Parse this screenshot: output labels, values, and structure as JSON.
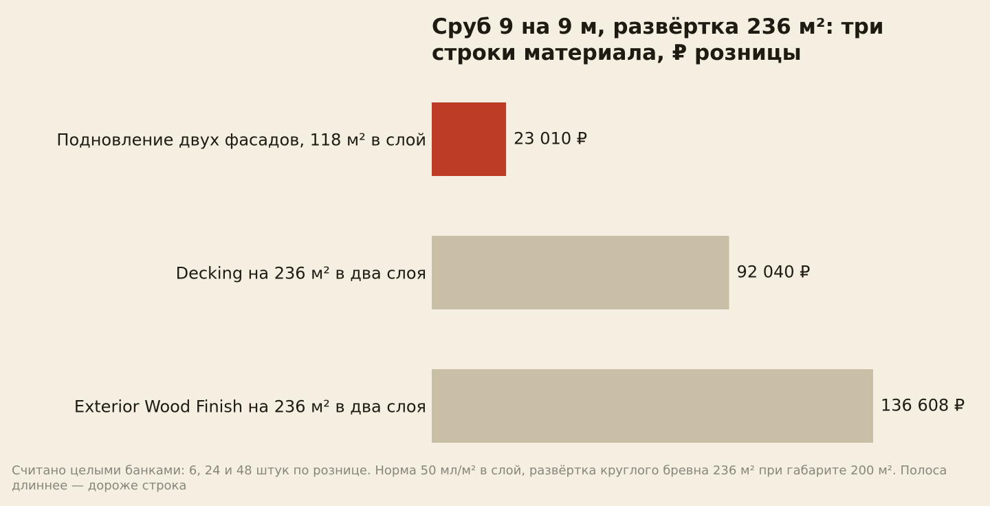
{
  "chart_data": {
    "type": "barh",
    "title": "Сруб 9 на 9 м, развёртка 236 м²: три строки материала, ₽ розницы",
    "categories": [
      "Подновление двух фасадов, 118 м² в слой",
      "Decking на 236 м² в два слоя",
      "Exterior Wood Finish на 236 м² в два слоя"
    ],
    "values": [
      23010,
      92040,
      136608
    ],
    "value_labels": [
      "23 010 ₽",
      "92 040 ₽",
      "136 608 ₽"
    ],
    "colors": [
      "#bc3c26",
      "#c9bfa7",
      "#c9bfa7"
    ],
    "note": "Считано целыми банками: 6, 24 и 48 штук по рознице. Норма 50 мл/м² в слой, развёртка круглого бревна 236 м² при габарите 200 м². Полоса длиннее — дороже строка"
  }
}
